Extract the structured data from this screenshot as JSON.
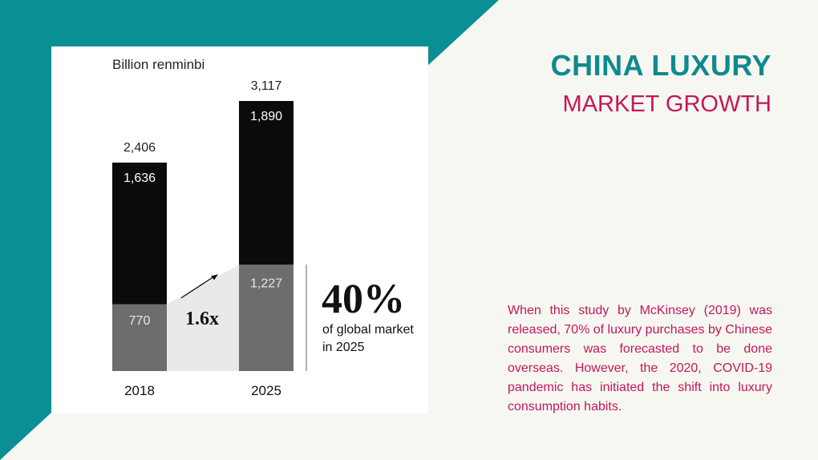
{
  "theme": {
    "teal": "#0a8f94",
    "magenta": "#c2185b",
    "background": "#f7f7f2"
  },
  "heading": {
    "title": "CHINA LUXURY",
    "subtitle": "MARKET GROWTH"
  },
  "description": "When this study by McKinsey (2019) was released, 70% of luxury purchases by Chinese consumers was forecasted to be done overseas. However, the 2020, COVID-19 pandemic has initiated the shift into luxury consumption habits.",
  "chart_data": {
    "type": "bar",
    "stacked": true,
    "unit_label": "Billion renminbi",
    "categories": [
      "2018",
      "2025"
    ],
    "series": [
      {
        "values": [
          770,
          1227
        ],
        "color": "#6b6d6e"
      },
      {
        "values": [
          1636,
          1890
        ],
        "color": "#0b0b0b"
      }
    ],
    "totals": [
      2406,
      3117
    ],
    "total_labels": [
      "2,406",
      "3,117"
    ],
    "segment_labels": [
      [
        "770",
        "1,636"
      ],
      [
        "1,227",
        "1,890"
      ]
    ],
    "growth_label": "1.6x",
    "callout": {
      "value": "40%",
      "text_line1": "of global market",
      "text_line2": "in 2025"
    },
    "ylim": [
      0,
      3117
    ]
  }
}
